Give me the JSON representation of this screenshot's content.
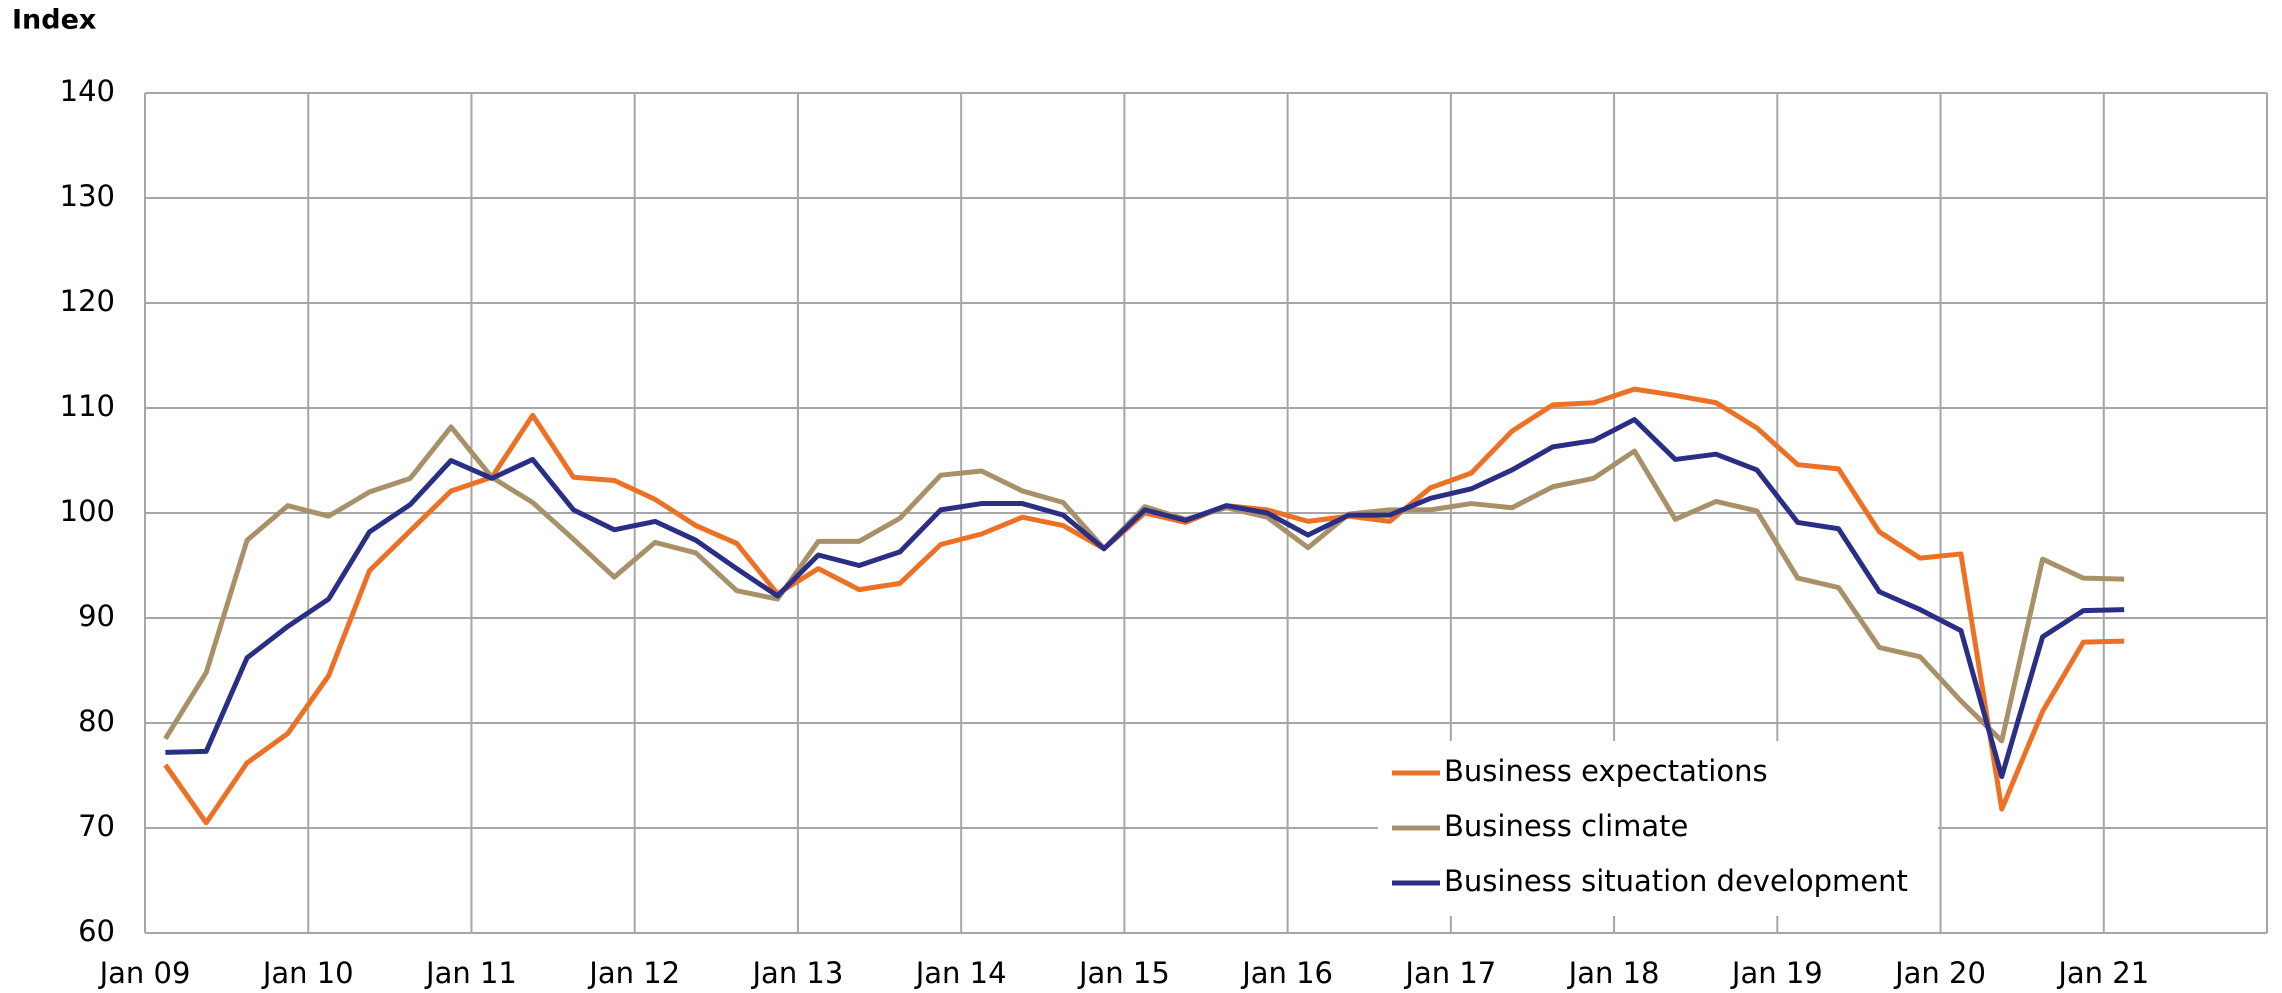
{
  "chart_data": {
    "type": "line",
    "y_axis_label": "Index",
    "xlim": [
      2009,
      2022
    ],
    "xticks": [
      {
        "value": 2009,
        "label": "Jan 09"
      },
      {
        "value": 2010,
        "label": "Jan 10"
      },
      {
        "value": 2011,
        "label": "Jan 11"
      },
      {
        "value": 2012,
        "label": "Jan 12"
      },
      {
        "value": 2013,
        "label": "Jan 13"
      },
      {
        "value": 2014,
        "label": "Jan 14"
      },
      {
        "value": 2015,
        "label": "Jan 15"
      },
      {
        "value": 2016,
        "label": "Jan 16"
      },
      {
        "value": 2017,
        "label": "Jan 17"
      },
      {
        "value": 2018,
        "label": "Jan 18"
      },
      {
        "value": 2019,
        "label": "Jan 19"
      },
      {
        "value": 2020,
        "label": "Jan 20"
      },
      {
        "value": 2021,
        "label": "Jan 21"
      }
    ],
    "ylim": [
      60,
      140
    ],
    "yticks": [
      60,
      70,
      80,
      90,
      100,
      110,
      120,
      130,
      140
    ],
    "grid": true,
    "legend": "bottom-center",
    "x": [
      2009.125,
      2009.375,
      2009.625,
      2009.875,
      2010.125,
      2010.375,
      2010.625,
      2010.875,
      2011.125,
      2011.375,
      2011.625,
      2011.875,
      2012.125,
      2012.375,
      2012.625,
      2012.875,
      2013.125,
      2013.375,
      2013.625,
      2013.875,
      2014.125,
      2014.375,
      2014.625,
      2014.875,
      2015.125,
      2015.375,
      2015.625,
      2015.875,
      2016.125,
      2016.375,
      2016.625,
      2016.875,
      2017.125,
      2017.375,
      2017.625,
      2017.875,
      2018.125,
      2018.375,
      2018.625,
      2018.875,
      2019.125,
      2019.375,
      2019.625,
      2019.875,
      2020.125,
      2020.375,
      2020.625,
      2020.875,
      2021.125
    ],
    "series": [
      {
        "name": "Business expectations",
        "color": "#ed7125",
        "values": [
          76,
          70.5,
          76.2,
          79,
          84.5,
          94.5,
          98.3,
          102.1,
          103.4,
          109.3,
          103.4,
          103.1,
          101.3,
          98.8,
          97.1,
          92.3,
          94.7,
          92.7,
          93.3,
          97,
          98,
          99.6,
          98.8,
          96.6,
          100,
          99.1,
          100.7,
          100.3,
          99.2,
          99.7,
          99.2,
          102.4,
          103.8,
          107.8,
          110.3,
          110.5,
          111.8,
          111.2,
          110.5,
          108.1,
          104.6,
          104.2,
          98.2,
          95.7,
          96.1,
          71.8,
          81.1,
          87.7,
          87.8
        ]
      },
      {
        "name": "Business climate",
        "color": "#a89169",
        "values": [
          78.5,
          84.8,
          97.4,
          100.7,
          99.7,
          102,
          103.3,
          108.2,
          103.4,
          101,
          97.5,
          93.9,
          97.2,
          96.2,
          92.6,
          91.8,
          97.3,
          97.3,
          99.5,
          103.6,
          104,
          102.1,
          101,
          96.6,
          100.6,
          99.4,
          100.5,
          99.6,
          96.7,
          99.9,
          100.3,
          100.3,
          100.9,
          100.5,
          102.5,
          103.3,
          105.9,
          99.4,
          101.1,
          100.2,
          93.8,
          92.9,
          87.2,
          86.3,
          82.1,
          78.3,
          95.6,
          93.8,
          93.7
        ]
      },
      {
        "name": "Business situation development",
        "color": "#2a2f86",
        "values": [
          77.2,
          77.3,
          86.2,
          89.2,
          91.8,
          98.2,
          100.8,
          105,
          103.3,
          105.1,
          100.3,
          98.4,
          99.2,
          97.4,
          94.7,
          92.1,
          96,
          95,
          96.3,
          100.3,
          100.9,
          100.9,
          99.8,
          96.6,
          100.3,
          99.3,
          100.7,
          100,
          97.9,
          99.8,
          99.8,
          101.4,
          102.3,
          104.1,
          106.3,
          106.9,
          108.9,
          105.1,
          105.6,
          104.1,
          99.1,
          98.5,
          92.5,
          90.8,
          88.8,
          74.9,
          88.2,
          90.7,
          90.8
        ]
      }
    ]
  }
}
